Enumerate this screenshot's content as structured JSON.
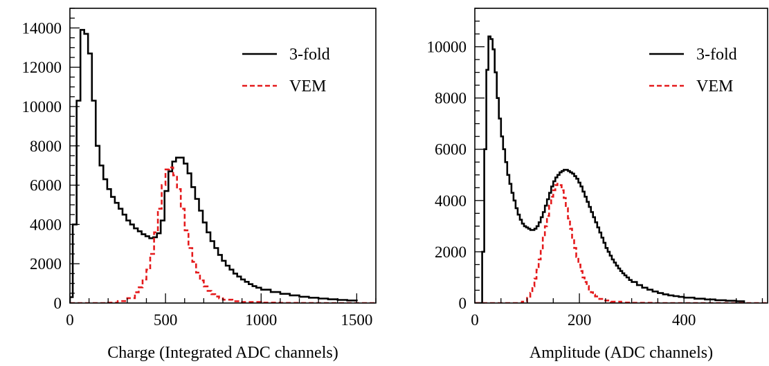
{
  "colors": {
    "threefold": "#000000",
    "vem": "#e41a1c",
    "axis": "#000000",
    "background": "#ffffff"
  },
  "chart_data": [
    {
      "type": "histogram",
      "panel": "left",
      "xlabel": "Charge (Integrated ADC channels)",
      "ylabel": "",
      "xlim": [
        0,
        1600
      ],
      "ylim": [
        0,
        15000
      ],
      "x_major_ticks": [
        0,
        500,
        1000,
        1500
      ],
      "x_tick_labels": [
        "0",
        "500",
        "1000",
        "1500"
      ],
      "y_major_ticks": [
        0,
        2000,
        4000,
        6000,
        8000,
        10000,
        12000,
        14000
      ],
      "y_tick_labels": [
        "0",
        "2000",
        "4000",
        "6000",
        "8000",
        "10000",
        "12000",
        "14000"
      ],
      "x_minor_step": 100,
      "y_minor_step": 500,
      "legend_placement": "top-right",
      "series": [
        {
          "name": "3-fold",
          "style": "solid",
          "points": [
            [
              0,
              300
            ],
            [
              15,
              4000
            ],
            [
              35,
              10300
            ],
            [
              55,
              13900
            ],
            [
              75,
              13700
            ],
            [
              95,
              12700
            ],
            [
              115,
              10300
            ],
            [
              135,
              8000
            ],
            [
              155,
              7000
            ],
            [
              175,
              6300
            ],
            [
              195,
              5800
            ],
            [
              215,
              5400
            ],
            [
              235,
              5100
            ],
            [
              255,
              4800
            ],
            [
              275,
              4500
            ],
            [
              295,
              4200
            ],
            [
              315,
              4000
            ],
            [
              335,
              3800
            ],
            [
              355,
              3650
            ],
            [
              375,
              3500
            ],
            [
              395,
              3400
            ],
            [
              415,
              3300
            ],
            [
              435,
              3350
            ],
            [
              455,
              3550
            ],
            [
              475,
              4200
            ],
            [
              495,
              5700
            ],
            [
              515,
              6700
            ],
            [
              535,
              7200
            ],
            [
              555,
              7400
            ],
            [
              575,
              7400
            ],
            [
              595,
              7100
            ],
            [
              615,
              6600
            ],
            [
              635,
              5900
            ],
            [
              655,
              5300
            ],
            [
              675,
              4700
            ],
            [
              695,
              4100
            ],
            [
              715,
              3600
            ],
            [
              735,
              3150
            ],
            [
              755,
              2800
            ],
            [
              775,
              2450
            ],
            [
              795,
              2150
            ],
            [
              815,
              1900
            ],
            [
              835,
              1700
            ],
            [
              855,
              1500
            ],
            [
              875,
              1350
            ],
            [
              895,
              1200
            ],
            [
              915,
              1080
            ],
            [
              935,
              960
            ],
            [
              955,
              860
            ],
            [
              975,
              780
            ],
            [
              1000,
              680
            ],
            [
              1050,
              560
            ],
            [
              1100,
              470
            ],
            [
              1150,
              390
            ],
            [
              1200,
              320
            ],
            [
              1250,
              270
            ],
            [
              1300,
              230
            ],
            [
              1350,
              190
            ],
            [
              1400,
              160
            ],
            [
              1450,
              130
            ],
            [
              1500,
              100
            ]
          ]
        },
        {
          "name": "VEM",
          "style": "dashed",
          "points": [
            [
              0,
              0
            ],
            [
              100,
              0
            ],
            [
              200,
              20
            ],
            [
              250,
              100
            ],
            [
              300,
              250
            ],
            [
              340,
              550
            ],
            [
              360,
              800
            ],
            [
              380,
              1200
            ],
            [
              400,
              1700
            ],
            [
              420,
              2500
            ],
            [
              440,
              3600
            ],
            [
              460,
              4800
            ],
            [
              480,
              6000
            ],
            [
              500,
              6800
            ],
            [
              520,
              6900
            ],
            [
              540,
              6500
            ],
            [
              560,
              5800
            ],
            [
              580,
              4800
            ],
            [
              600,
              3700
            ],
            [
              620,
              2800
            ],
            [
              640,
              2100
            ],
            [
              660,
              1550
            ],
            [
              680,
              1150
            ],
            [
              700,
              850
            ],
            [
              720,
              620
            ],
            [
              740,
              450
            ],
            [
              760,
              330
            ],
            [
              780,
              240
            ],
            [
              800,
              170
            ],
            [
              850,
              90
            ],
            [
              900,
              50
            ],
            [
              1000,
              20
            ],
            [
              1100,
              8
            ],
            [
              1200,
              2
            ],
            [
              1300,
              0
            ],
            [
              1600,
              0
            ]
          ]
        }
      ]
    },
    {
      "type": "histogram",
      "panel": "right",
      "xlabel": "Amplitude (ADC channels)",
      "ylabel": "",
      "xlim": [
        0,
        560
      ],
      "ylim": [
        0,
        11500
      ],
      "x_major_ticks": [
        0,
        200,
        400
      ],
      "x_tick_labels": [
        "0",
        "200",
        "400"
      ],
      "y_major_ticks": [
        0,
        2000,
        4000,
        6000,
        8000,
        10000
      ],
      "y_tick_labels": [
        "0",
        "2000",
        "4000",
        "6000",
        "8000",
        "10000"
      ],
      "x_minor_step": 50,
      "y_minor_step": 500,
      "legend_placement": "top-right",
      "series": [
        {
          "name": "3-fold",
          "style": "solid",
          "points": [
            [
              0,
              0
            ],
            [
              8,
              0
            ],
            [
              14,
              2000
            ],
            [
              18,
              6000
            ],
            [
              22,
              9100
            ],
            [
              26,
              10400
            ],
            [
              30,
              10300
            ],
            [
              34,
              9900
            ],
            [
              38,
              9000
            ],
            [
              42,
              8000
            ],
            [
              46,
              7200
            ],
            [
              50,
              6500
            ],
            [
              54,
              6000
            ],
            [
              58,
              5500
            ],
            [
              62,
              5000
            ],
            [
              66,
              4650
            ],
            [
              70,
              4300
            ],
            [
              74,
              4000
            ],
            [
              78,
              3700
            ],
            [
              82,
              3450
            ],
            [
              86,
              3250
            ],
            [
              90,
              3100
            ],
            [
              94,
              3000
            ],
            [
              98,
              2950
            ],
            [
              102,
              2900
            ],
            [
              106,
              2850
            ],
            [
              110,
              2850
            ],
            [
              114,
              2900
            ],
            [
              118,
              3000
            ],
            [
              122,
              3150
            ],
            [
              126,
              3350
            ],
            [
              130,
              3550
            ],
            [
              134,
              3800
            ],
            [
              138,
              4050
            ],
            [
              142,
              4300
            ],
            [
              146,
              4550
            ],
            [
              150,
              4750
            ],
            [
              154,
              4900
            ],
            [
              158,
              5000
            ],
            [
              162,
              5100
            ],
            [
              166,
              5150
            ],
            [
              170,
              5200
            ],
            [
              174,
              5200
            ],
            [
              178,
              5150
            ],
            [
              182,
              5100
            ],
            [
              186,
              5050
            ],
            [
              190,
              4950
            ],
            [
              194,
              4850
            ],
            [
              198,
              4700
            ],
            [
              202,
              4550
            ],
            [
              206,
              4350
            ],
            [
              210,
              4150
            ],
            [
              214,
              3950
            ],
            [
              218,
              3750
            ],
            [
              222,
              3550
            ],
            [
              226,
              3350
            ],
            [
              230,
              3150
            ],
            [
              234,
              2950
            ],
            [
              238,
              2750
            ],
            [
              242,
              2550
            ],
            [
              246,
              2350
            ],
            [
              250,
              2150
            ],
            [
              254,
              2000
            ],
            [
              258,
              1850
            ],
            [
              262,
              1700
            ],
            [
              266,
              1580
            ],
            [
              270,
              1460
            ],
            [
              274,
              1350
            ],
            [
              278,
              1250
            ],
            [
              282,
              1160
            ],
            [
              286,
              1080
            ],
            [
              290,
              1000
            ],
            [
              295,
              900
            ],
            [
              300,
              820
            ],
            [
              310,
              700
            ],
            [
              320,
              600
            ],
            [
              330,
              520
            ],
            [
              340,
              450
            ],
            [
              350,
              390
            ],
            [
              360,
              340
            ],
            [
              370,
              300
            ],
            [
              380,
              270
            ],
            [
              390,
              240
            ],
            [
              400,
              210
            ],
            [
              420,
              170
            ],
            [
              440,
              140
            ],
            [
              460,
              110
            ],
            [
              480,
              90
            ],
            [
              500,
              70
            ],
            [
              515,
              0
            ]
          ]
        },
        {
          "name": "VEM",
          "style": "dashed",
          "points": [
            [
              0,
              0
            ],
            [
              80,
              0
            ],
            [
              90,
              50
            ],
            [
              100,
              200
            ],
            [
              106,
              400
            ],
            [
              110,
              650
            ],
            [
              114,
              950
            ],
            [
              118,
              1300
            ],
            [
              122,
              1700
            ],
            [
              126,
              2100
            ],
            [
              130,
              2550
            ],
            [
              134,
              3000
            ],
            [
              138,
              3400
            ],
            [
              142,
              3800
            ],
            [
              146,
              4150
            ],
            [
              150,
              4400
            ],
            [
              154,
              4600
            ],
            [
              158,
              4650
            ],
            [
              162,
              4600
            ],
            [
              166,
              4400
            ],
            [
              170,
              4100
            ],
            [
              174,
              3700
            ],
            [
              178,
              3300
            ],
            [
              182,
              2900
            ],
            [
              186,
              2500
            ],
            [
              190,
              2150
            ],
            [
              194,
              1800
            ],
            [
              198,
              1500
            ],
            [
              202,
              1250
            ],
            [
              206,
              1000
            ],
            [
              210,
              820
            ],
            [
              214,
              660
            ],
            [
              218,
              530
            ],
            [
              222,
              420
            ],
            [
              226,
              330
            ],
            [
              230,
              260
            ],
            [
              238,
              160
            ],
            [
              246,
              100
            ],
            [
              260,
              50
            ],
            [
              280,
              20
            ],
            [
              300,
              8
            ],
            [
              340,
              0
            ],
            [
              560,
              0
            ]
          ]
        }
      ]
    }
  ]
}
